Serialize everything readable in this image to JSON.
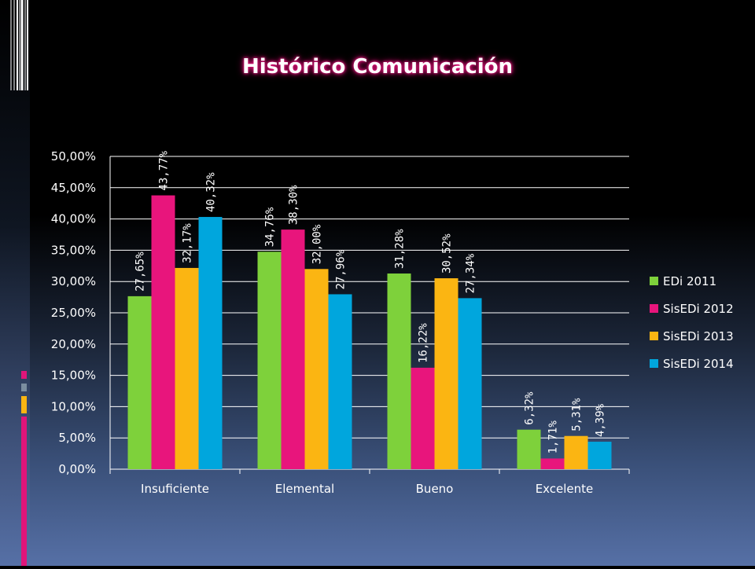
{
  "slide": {
    "title": "Histórico Comunicación"
  },
  "colors": {
    "EDi 2011": "#7ed13b",
    "SisEDi 2012": "#e8157c",
    "SisEDi 2013": "#fbb512",
    "SisEDi 2014": "#00a6dd",
    "accent_pink": "#e0157a",
    "accent_gray": "#7c8ea0",
    "accent_yellow": "#fbb512"
  },
  "chart_data": {
    "type": "bar",
    "title": "Histórico Comunicación",
    "categories": [
      "Insuficiente",
      "Elemental",
      "Bueno",
      "Excelente"
    ],
    "series": [
      {
        "name": "EDi 2011",
        "values": [
          27.65,
          34.76,
          31.28,
          6.32
        ],
        "labels": [
          "27,65%",
          "34,76%",
          "31,28%",
          "6,32%"
        ]
      },
      {
        "name": "SisEDi 2012",
        "values": [
          43.77,
          38.3,
          16.22,
          1.71
        ],
        "labels": [
          "43,77%",
          "38,30%",
          "16,22%",
          "1,71%"
        ]
      },
      {
        "name": "SisEDi 2013",
        "values": [
          32.17,
          32.0,
          30.52,
          5.31
        ],
        "labels": [
          "32,17%",
          "32,00%",
          "30,52%",
          "5,31%"
        ]
      },
      {
        "name": "SisEDi 2014",
        "values": [
          40.32,
          27.96,
          27.34,
          4.39
        ],
        "labels": [
          "40,32%",
          "27,96%",
          "27,34%",
          "4,39%"
        ]
      }
    ],
    "ylim": [
      0,
      50
    ],
    "yticks": [
      "0,00%",
      "5,00%",
      "10,00%",
      "15,00%",
      "20,00%",
      "25,00%",
      "30,00%",
      "35,00%",
      "40,00%",
      "45,00%",
      "50,00%"
    ],
    "grid": true,
    "legend": "right"
  }
}
